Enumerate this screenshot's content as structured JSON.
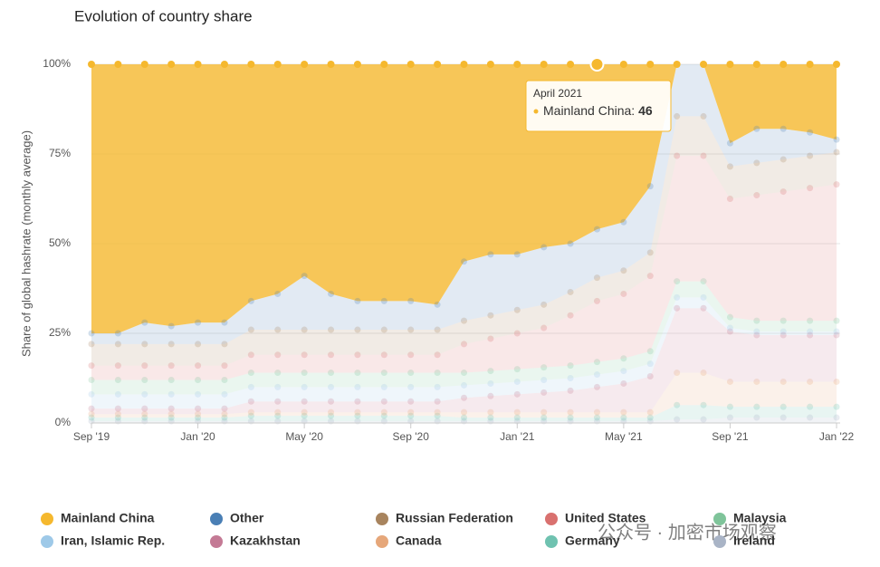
{
  "chart_data": {
    "type": "stacked_area",
    "title": "Evolution of country share",
    "y_label": "Share of global hashrate (monthly average)",
    "categories": [
      "Sep '19",
      null,
      null,
      null,
      "Jan '20",
      null,
      null,
      null,
      "May '20",
      null,
      null,
      null,
      "Sep '20",
      null,
      null,
      null,
      "Jan '21",
      null,
      null,
      null,
      "May '21",
      null,
      null,
      null,
      "Sep '21",
      null,
      null,
      null,
      "Jan '22"
    ],
    "ylim": [
      0,
      100
    ],
    "yticks": [
      {
        "value": 0,
        "label": "0%"
      },
      {
        "value": 25,
        "label": "25%"
      },
      {
        "value": 50,
        "label": "50%"
      },
      {
        "value": 75,
        "label": "75%"
      },
      {
        "value": 100,
        "label": "100%"
      }
    ],
    "grid": true,
    "legend": "bottom",
    "series": [
      {
        "name": "Mainland China",
        "color": "#f5b82e",
        "values": [
          75,
          75,
          72,
          73,
          72,
          72,
          66,
          64,
          59,
          64,
          66,
          66,
          66,
          67,
          55,
          53,
          53,
          51,
          50,
          46,
          44,
          34,
          0,
          0,
          22,
          18,
          18,
          19,
          21
        ]
      },
      {
        "name": "Other",
        "color": "#4a7fb5",
        "values": [
          3,
          3,
          6,
          5,
          6,
          6,
          8,
          10,
          15,
          10,
          8,
          8,
          8,
          7,
          16.5,
          17,
          15.5,
          16,
          13.5,
          13.5,
          13.5,
          18.5,
          14.5,
          14.5,
          6.5,
          9.5,
          8.5,
          6.5,
          3.5
        ]
      },
      {
        "name": "Russian Federation",
        "color": "#a8845e",
        "values": [
          6,
          6,
          6,
          6,
          6,
          6,
          7,
          7,
          7,
          7,
          7,
          7,
          7,
          7,
          6.5,
          6.5,
          6.5,
          6.5,
          6.5,
          6.5,
          6.5,
          6.5,
          11,
          11,
          9,
          9,
          9,
          9,
          9
        ]
      },
      {
        "name": "United States",
        "color": "#d9716f",
        "values": [
          4,
          4,
          4,
          4,
          4,
          4,
          5,
          5,
          5,
          5,
          5,
          5,
          5,
          5,
          8,
          9,
          10,
          11,
          14,
          17,
          18,
          21,
          35,
          35,
          33,
          35,
          36,
          37,
          38
        ]
      },
      {
        "name": "Malaysia",
        "color": "#7fc49a",
        "values": [
          4,
          4,
          4,
          4,
          4,
          4,
          4,
          4,
          4,
          4,
          4,
          4,
          4,
          4,
          3.5,
          3.5,
          3.5,
          3.5,
          3.5,
          3.5,
          3.5,
          3.5,
          4.5,
          4.5,
          3,
          3,
          3,
          3,
          3
        ]
      },
      {
        "name": "Iran, Islamic Rep.",
        "color": "#9ec9e8",
        "values": [
          4,
          4,
          4,
          4,
          4,
          4,
          4,
          4,
          4,
          4,
          4,
          4,
          4,
          4,
          3.5,
          3.5,
          3.5,
          3.5,
          3.5,
          3.5,
          3.5,
          3.5,
          3,
          3,
          1,
          1,
          1,
          1,
          1
        ]
      },
      {
        "name": "Kazakhstan",
        "color": "#c47a95",
        "values": [
          1.5,
          1.5,
          1.5,
          1.5,
          1.5,
          1.5,
          3,
          3,
          3,
          3,
          3,
          3,
          3,
          3,
          4,
          4.5,
          5,
          5.5,
          6,
          7,
          8,
          10,
          18,
          18,
          14,
          13,
          13,
          13,
          13
        ]
      },
      {
        "name": "Canada",
        "color": "#e6a77a",
        "values": [
          1,
          1,
          1,
          1,
          1,
          1,
          1,
          1,
          1,
          1,
          1,
          1,
          1,
          1,
          1.5,
          1.5,
          1.5,
          1.5,
          1.5,
          1.5,
          1.5,
          1.5,
          9,
          9,
          7,
          7,
          7,
          7,
          7
        ]
      },
      {
        "name": "Germany",
        "color": "#6fc2b0",
        "values": [
          1,
          1,
          1,
          1,
          1,
          1,
          1.5,
          1.5,
          1.5,
          1.5,
          1.5,
          1.5,
          1.5,
          1.5,
          1,
          1,
          1,
          1,
          1,
          1,
          1,
          1,
          4,
          4,
          3,
          3,
          3,
          3,
          3
        ]
      },
      {
        "name": "Ireland",
        "color": "#a9b4c6",
        "values": [
          0.5,
          0.5,
          0.5,
          0.5,
          0.5,
          0.5,
          0.5,
          0.5,
          0.5,
          0.5,
          0.5,
          0.5,
          0.5,
          0.5,
          0.5,
          0.5,
          0.5,
          0.5,
          0.5,
          0.5,
          0.5,
          0.5,
          1,
          1,
          1.5,
          1.5,
          1.5,
          1.5,
          1.5
        ]
      }
    ],
    "tooltip": {
      "title": "April 2021"
    },
    "watermark": "公众号 · 加密市场观察"
  }
}
